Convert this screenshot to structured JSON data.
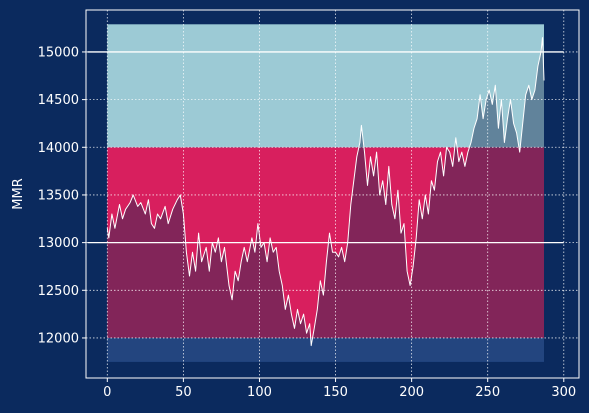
{
  "chart_data": {
    "type": "line",
    "title": "",
    "xlabel": "",
    "ylabel": "MMR",
    "xlim": [
      -14,
      310
    ],
    "ylim": [
      11580,
      15440
    ],
    "grid": true,
    "x_ticks": [
      0,
      50,
      100,
      150,
      200,
      250,
      300
    ],
    "y_ticks": [
      12000,
      12500,
      13000,
      13500,
      14000,
      14500,
      15000
    ],
    "bands": [
      {
        "y0": 11750,
        "y1": 12000,
        "x0": 0,
        "x1": 287,
        "color": "#2a5aa3"
      },
      {
        "y0": 12000,
        "y1": 14000,
        "x0": 0,
        "x1": 287,
        "color": "#d81f5e"
      },
      {
        "y0": 14000,
        "y1": 15290,
        "x0": 0,
        "x1": 287,
        "color": "#9ccad5"
      }
    ],
    "hlines": [
      {
        "y": 13000,
        "x0": -13,
        "x1": 300,
        "color": "#ffffff"
      },
      {
        "y": 15000,
        "x0": -13,
        "x1": 300,
        "color": "#ffffff"
      }
    ],
    "fill_under_color": "#1a2d55",
    "colors": {
      "background": "#0b2a5e",
      "line": "#ffffff",
      "grid": "#ffffff",
      "axes": "#ffffff"
    },
    "series": [
      {
        "keypoints": [
          [
            0,
            13150
          ],
          [
            1,
            13050
          ],
          [
            3,
            13300
          ],
          [
            5,
            13150
          ],
          [
            8,
            13400
          ],
          [
            10,
            13250
          ],
          [
            12,
            13350
          ],
          [
            15,
            13420
          ],
          [
            17,
            13500
          ],
          [
            20,
            13380
          ],
          [
            22,
            13420
          ],
          [
            25,
            13300
          ],
          [
            27,
            13450
          ],
          [
            29,
            13200
          ],
          [
            31,
            13150
          ],
          [
            33,
            13300
          ],
          [
            35,
            13250
          ],
          [
            38,
            13380
          ],
          [
            40,
            13200
          ],
          [
            43,
            13350
          ],
          [
            46,
            13450
          ],
          [
            48,
            13500
          ],
          [
            50,
            13300
          ],
          [
            52,
            12900
          ],
          [
            54,
            12650
          ],
          [
            56,
            12900
          ],
          [
            58,
            12700
          ],
          [
            60,
            13100
          ],
          [
            62,
            12800
          ],
          [
            65,
            12950
          ],
          [
            67,
            12700
          ],
          [
            69,
            13000
          ],
          [
            71,
            12900
          ],
          [
            73,
            13050
          ],
          [
            75,
            12800
          ],
          [
            77,
            12950
          ],
          [
            80,
            12550
          ],
          [
            82,
            12400
          ],
          [
            84,
            12700
          ],
          [
            86,
            12600
          ],
          [
            88,
            12800
          ],
          [
            90,
            12950
          ],
          [
            92,
            12800
          ],
          [
            95,
            13050
          ],
          [
            97,
            12900
          ],
          [
            99,
            13200
          ],
          [
            101,
            12950
          ],
          [
            103,
            13000
          ],
          [
            105,
            12800
          ],
          [
            107,
            13050
          ],
          [
            109,
            12900
          ],
          [
            111,
            12950
          ],
          [
            113,
            12700
          ],
          [
            115,
            12550
          ],
          [
            117,
            12300
          ],
          [
            119,
            12450
          ],
          [
            121,
            12250
          ],
          [
            123,
            12100
          ],
          [
            125,
            12300
          ],
          [
            127,
            12150
          ],
          [
            129,
            12250
          ],
          [
            131,
            12050
          ],
          [
            133,
            12150
          ],
          [
            134,
            11920
          ],
          [
            136,
            12100
          ],
          [
            138,
            12300
          ],
          [
            140,
            12600
          ],
          [
            142,
            12450
          ],
          [
            144,
            12800
          ],
          [
            146,
            13100
          ],
          [
            148,
            12900
          ],
          [
            150,
            12900
          ],
          [
            152,
            12850
          ],
          [
            154,
            12950
          ],
          [
            156,
            12800
          ],
          [
            158,
            13000
          ],
          [
            160,
            13400
          ],
          [
            162,
            13650
          ],
          [
            164,
            13900
          ],
          [
            166,
            14050
          ],
          [
            167,
            14230
          ],
          [
            169,
            13950
          ],
          [
            171,
            13600
          ],
          [
            173,
            13900
          ],
          [
            175,
            13700
          ],
          [
            177,
            13950
          ],
          [
            179,
            13500
          ],
          [
            181,
            13650
          ],
          [
            183,
            13400
          ],
          [
            185,
            13800
          ],
          [
            187,
            13400
          ],
          [
            189,
            13250
          ],
          [
            191,
            13550
          ],
          [
            193,
            13100
          ],
          [
            195,
            13200
          ],
          [
            197,
            12700
          ],
          [
            199,
            12550
          ],
          [
            201,
            12750
          ],
          [
            203,
            13050
          ],
          [
            205,
            13450
          ],
          [
            207,
            13250
          ],
          [
            209,
            13500
          ],
          [
            211,
            13300
          ],
          [
            213,
            13650
          ],
          [
            215,
            13550
          ],
          [
            217,
            13850
          ],
          [
            219,
            13950
          ],
          [
            221,
            13700
          ],
          [
            223,
            14000
          ],
          [
            225,
            13950
          ],
          [
            227,
            13800
          ],
          [
            229,
            14100
          ],
          [
            231,
            13850
          ],
          [
            233,
            13950
          ],
          [
            235,
            13800
          ],
          [
            237,
            13950
          ],
          [
            239,
            14050
          ],
          [
            241,
            14200
          ],
          [
            243,
            14300
          ],
          [
            245,
            14550
          ],
          [
            247,
            14300
          ],
          [
            249,
            14500
          ],
          [
            251,
            14600
          ],
          [
            253,
            14450
          ],
          [
            255,
            14650
          ],
          [
            257,
            14200
          ],
          [
            259,
            14500
          ],
          [
            261,
            14050
          ],
          [
            263,
            14300
          ],
          [
            265,
            14500
          ],
          [
            267,
            14250
          ],
          [
            269,
            14150
          ],
          [
            271,
            13950
          ],
          [
            273,
            14250
          ],
          [
            275,
            14550
          ],
          [
            277,
            14650
          ],
          [
            279,
            14500
          ],
          [
            281,
            14600
          ],
          [
            283,
            14850
          ],
          [
            285,
            15000
          ],
          [
            286,
            15150
          ],
          [
            287,
            14700
          ]
        ]
      }
    ]
  }
}
